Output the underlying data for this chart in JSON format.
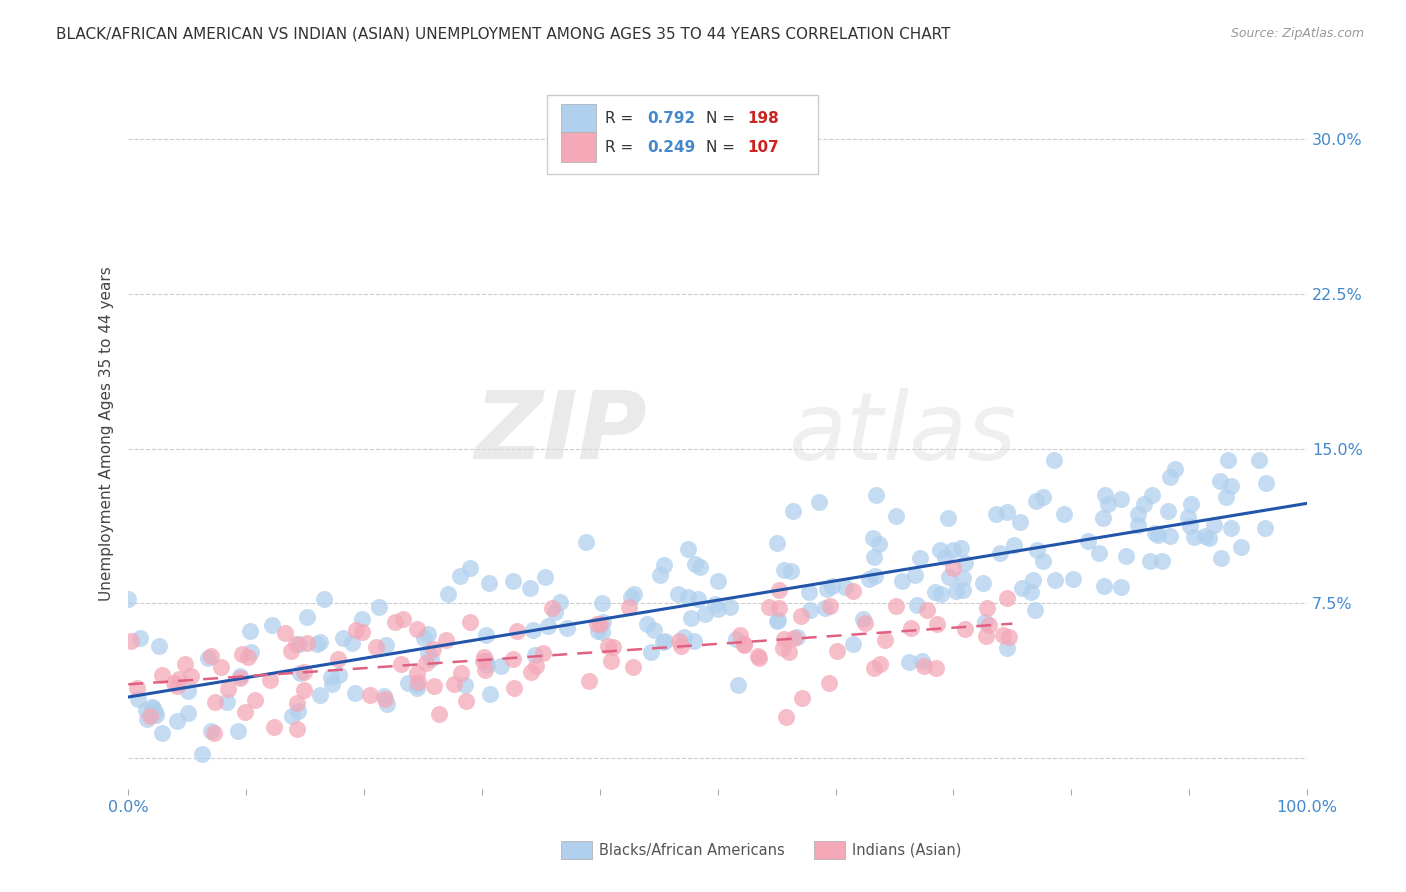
{
  "title": "BLACK/AFRICAN AMERICAN VS INDIAN (ASIAN) UNEMPLOYMENT AMONG AGES 35 TO 44 YEARS CORRELATION CHART",
  "source": "Source: ZipAtlas.com",
  "ylabel": "Unemployment Among Ages 35 to 44 years",
  "xlim": [
    0,
    100
  ],
  "ylim": [
    -1.5,
    33
  ],
  "yticks": [
    0,
    7.5,
    15.0,
    22.5,
    30.0
  ],
  "xticks": [
    0,
    10,
    20,
    30,
    40,
    50,
    60,
    70,
    80,
    90,
    100
  ],
  "xtick_labels_show": [
    "0.0%",
    "",
    "",
    "",
    "",
    "",
    "",
    "",
    "",
    "",
    "100.0%"
  ],
  "ytick_labels": [
    "",
    "7.5%",
    "15.0%",
    "22.5%",
    "30.0%"
  ],
  "blue_R": 0.792,
  "blue_N": 198,
  "pink_R": 0.249,
  "pink_N": 107,
  "blue_color": "#b0d0ee",
  "pink_color": "#f4a8b8",
  "blue_line_color": "#2255aa",
  "pink_line_color": "#e06080",
  "legend_label_blue": "Blacks/African Americans",
  "legend_label_pink": "Indians (Asian)",
  "watermark_zip": "ZIP",
  "watermark_atlas": "atlas",
  "background_color": "#ffffff",
  "grid_color": "#cccccc",
  "title_color": "#333333",
  "axis_label_color": "#444444",
  "tick_label_color": "#4488cc",
  "legend_r_color": "#4488cc",
  "legend_n_color": "#cc2222",
  "blue_seed": 12345,
  "pink_seed": 67890
}
